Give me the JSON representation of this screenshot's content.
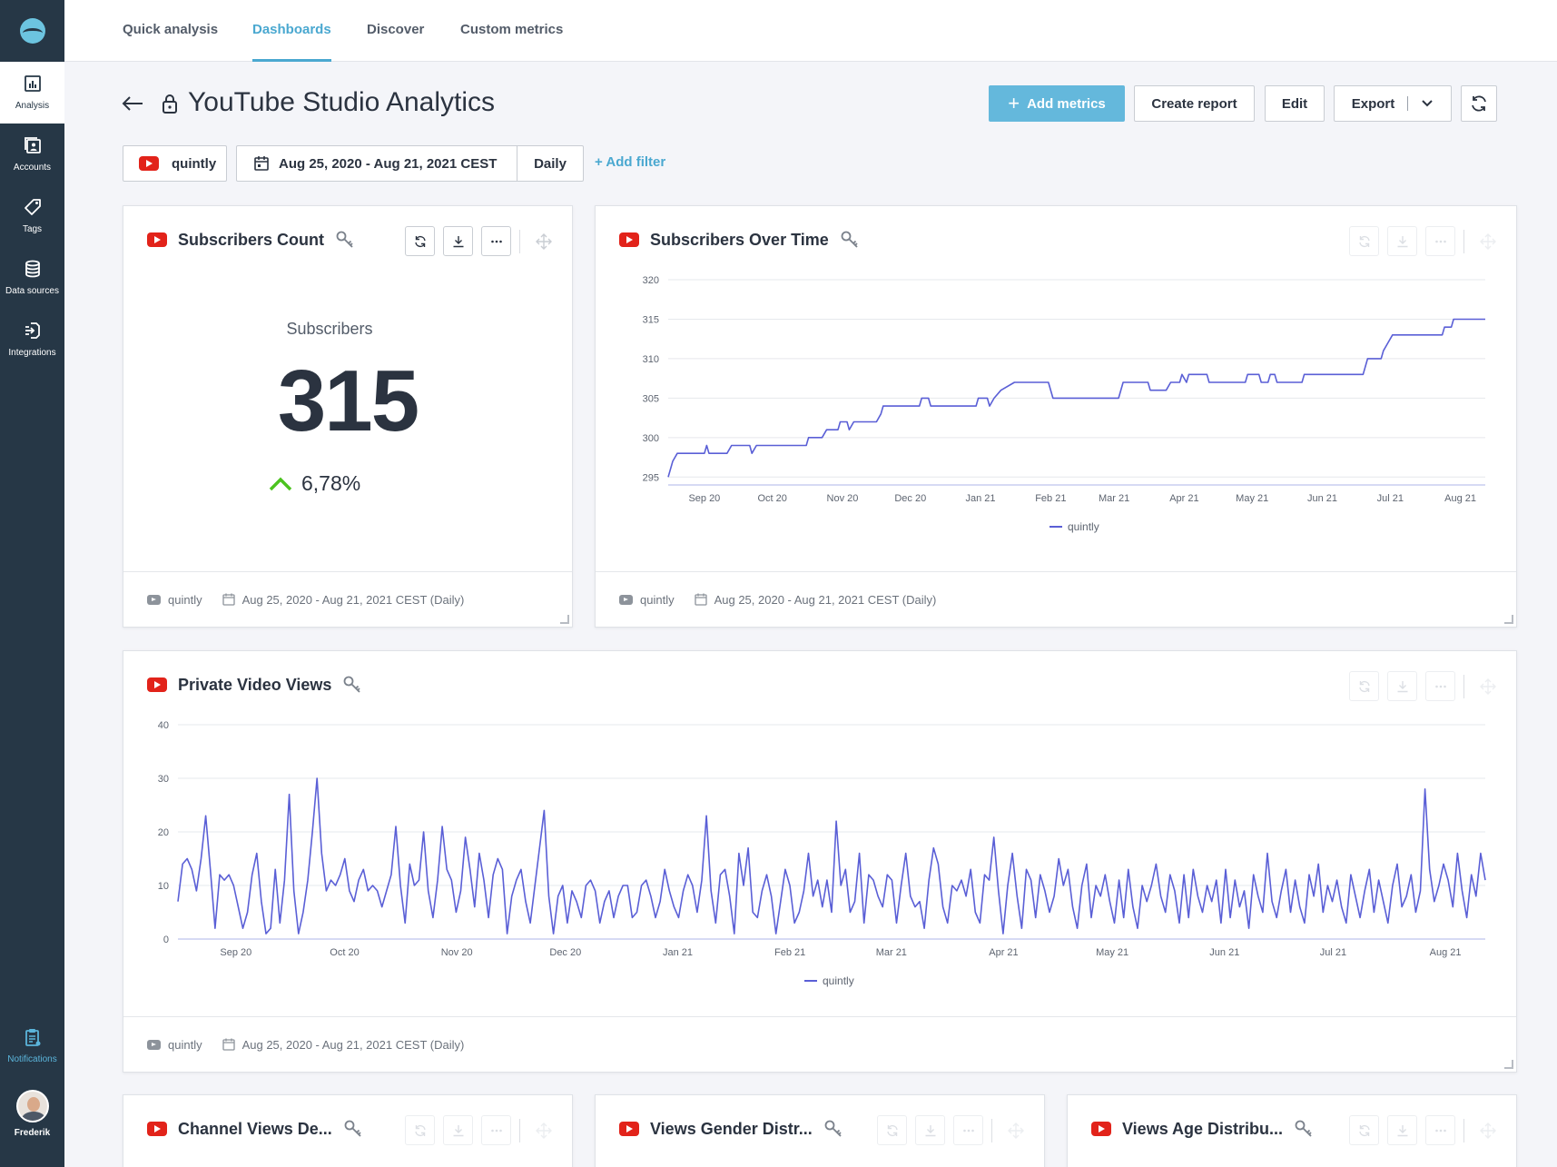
{
  "sidebar": {
    "items": [
      {
        "name": "analysis",
        "label": "Analysis",
        "icon": "bar-chart-icon"
      },
      {
        "name": "accounts",
        "label": "Accounts",
        "icon": "accounts-icon"
      },
      {
        "name": "tags",
        "label": "Tags",
        "icon": "tag-icon"
      },
      {
        "name": "data-sources",
        "label": "Data sources",
        "icon": "database-icon"
      },
      {
        "name": "integrations",
        "label": "Integrations",
        "icon": "integrations-icon"
      }
    ],
    "notifications": {
      "label": "Notifications",
      "icon": "clipboard-icon"
    },
    "user": {
      "name": "Frederik"
    }
  },
  "tabs": [
    {
      "label": "Quick analysis"
    },
    {
      "label": "Dashboards",
      "active": true
    },
    {
      "label": "Discover"
    },
    {
      "label": "Custom metrics"
    }
  ],
  "header": {
    "title": "YouTube Studio Analytics",
    "add_metrics": "Add metrics",
    "create_report": "Create report",
    "edit": "Edit",
    "export": "Export"
  },
  "filters": {
    "profile": "quintly",
    "date_range": "Aug 25, 2020 - Aug 21, 2021 CEST",
    "interval": "Daily",
    "add_filter": "+ Add filter"
  },
  "footer": {
    "profile": "quintly",
    "range": "Aug 25, 2020 - Aug 21, 2021 CEST (Daily)"
  },
  "cards": {
    "subscribers_count": {
      "title": "Subscribers Count",
      "label": "Subscribers",
      "value": "315",
      "change": "6,78%",
      "change_direction": "up"
    },
    "subscribers_over_time": {
      "title": "Subscribers Over Time"
    },
    "private_video_views": {
      "title": "Private Video Views"
    },
    "channel_views": {
      "title": "Channel Views De..."
    },
    "views_gender": {
      "title": "Views Gender Distr..."
    },
    "views_age": {
      "title": "Views Age Distribu..."
    }
  },
  "colors": {
    "sidebar": "#263746",
    "accent": "#4aa8d0",
    "primary_button": "#64b8dc",
    "series": "#5a5fd6",
    "positive": "#4cc31f",
    "youtube": "#e2231a"
  },
  "chart_data": [
    {
      "type": "line",
      "title": "Subscribers Over Time",
      "x_tick_labels": [
        "Sep 20",
        "Oct 20",
        "Nov 20",
        "Dec 20",
        "Jan 21",
        "Feb 21",
        "Mar 21",
        "Apr 21",
        "May 21",
        "Jun 21",
        "Jul 21",
        "Aug 21"
      ],
      "ylim": [
        294,
        320
      ],
      "y_ticks": [
        295,
        300,
        305,
        310,
        315,
        320
      ],
      "grid": true,
      "legend": "bottom-center",
      "series": [
        {
          "name": "quintly",
          "points": [
            [
              "2020-08-25",
              295
            ],
            [
              "2020-08-27",
              297
            ],
            [
              "2020-08-29",
              298
            ],
            [
              "2020-09-10",
              298
            ],
            [
              "2020-09-11",
              299
            ],
            [
              "2020-09-12",
              298
            ],
            [
              "2020-09-20",
              298
            ],
            [
              "2020-09-22",
              299
            ],
            [
              "2020-09-30",
              299
            ],
            [
              "2020-10-01",
              298
            ],
            [
              "2020-10-03",
              299
            ],
            [
              "2020-10-25",
              299
            ],
            [
              "2020-10-26",
              300
            ],
            [
              "2020-11-01",
              300
            ],
            [
              "2020-11-03",
              301
            ],
            [
              "2020-11-08",
              301
            ],
            [
              "2020-11-09",
              302
            ],
            [
              "2020-11-12",
              302
            ],
            [
              "2020-11-13",
              301
            ],
            [
              "2020-11-15",
              302
            ],
            [
              "2020-11-25",
              302
            ],
            [
              "2020-11-27",
              303
            ],
            [
              "2020-11-28",
              304
            ],
            [
              "2020-11-30",
              304
            ],
            [
              "2020-12-01",
              304
            ],
            [
              "2020-12-14",
              304
            ],
            [
              "2020-12-15",
              305
            ],
            [
              "2020-12-18",
              305
            ],
            [
              "2020-12-19",
              304
            ],
            [
              "2021-01-08",
              304
            ],
            [
              "2021-01-09",
              305
            ],
            [
              "2021-01-13",
              305
            ],
            [
              "2021-01-14",
              304
            ],
            [
              "2021-01-16",
              305
            ],
            [
              "2021-01-19",
              306
            ],
            [
              "2021-01-25",
              307
            ],
            [
              "2021-02-09",
              307
            ],
            [
              "2021-02-11",
              305
            ],
            [
              "2021-03-12",
              305
            ],
            [
              "2021-03-14",
              307
            ],
            [
              "2021-03-25",
              307
            ],
            [
              "2021-03-26",
              306
            ],
            [
              "2021-04-02",
              306
            ],
            [
              "2021-04-04",
              307
            ],
            [
              "2021-04-08",
              307
            ],
            [
              "2021-04-09",
              308
            ],
            [
              "2021-04-11",
              307
            ],
            [
              "2021-04-12",
              308
            ],
            [
              "2021-04-20",
              308
            ],
            [
              "2021-04-21",
              307
            ],
            [
              "2021-05-07",
              307
            ],
            [
              "2021-05-08",
              308
            ],
            [
              "2021-05-13",
              308
            ],
            [
              "2021-05-14",
              307
            ],
            [
              "2021-05-17",
              307
            ],
            [
              "2021-05-18",
              308
            ],
            [
              "2021-05-20",
              308
            ],
            [
              "2021-05-21",
              307
            ],
            [
              "2021-06-01",
              307
            ],
            [
              "2021-06-02",
              308
            ],
            [
              "2021-06-28",
              308
            ],
            [
              "2021-06-29",
              309
            ],
            [
              "2021-06-30",
              310
            ],
            [
              "2021-07-06",
              310
            ],
            [
              "2021-07-07",
              311
            ],
            [
              "2021-07-09",
              312
            ],
            [
              "2021-07-11",
              313
            ],
            [
              "2021-08-02",
              313
            ],
            [
              "2021-08-03",
              314
            ],
            [
              "2021-08-06",
              314
            ],
            [
              "2021-08-07",
              315
            ],
            [
              "2021-08-21",
              315
            ]
          ]
        }
      ]
    },
    {
      "type": "line",
      "title": "Private Video Views",
      "x_tick_labels": [
        "Sep 20",
        "Oct 20",
        "Nov 20",
        "Dec 20",
        "Jan 21",
        "Feb 21",
        "Mar 21",
        "Apr 21",
        "May 21",
        "Jun 21",
        "Jul 21",
        "Aug 21"
      ],
      "ylim": [
        0,
        40
      ],
      "y_ticks": [
        0,
        10,
        20,
        30,
        40
      ],
      "grid": true,
      "legend": "bottom-center",
      "series": [
        {
          "name": "quintly",
          "start_date": "2020-08-25",
          "values": [
            7,
            14,
            15,
            13,
            9,
            15,
            23,
            13,
            2,
            12,
            11,
            12,
            10,
            6,
            2,
            5,
            12,
            16,
            7,
            1,
            2,
            13,
            3,
            11,
            27,
            9,
            1,
            5,
            11,
            20,
            30,
            16,
            9,
            11,
            10,
            12,
            15,
            9,
            7,
            11,
            13,
            9,
            10,
            9,
            6,
            9,
            12,
            21,
            10,
            3,
            14,
            10,
            11,
            20,
            9,
            4,
            11,
            21,
            13,
            11,
            5,
            9,
            19,
            13,
            6,
            16,
            11,
            4,
            12,
            15,
            13,
            1,
            8,
            11,
            13,
            7,
            3,
            10,
            17,
            24,
            8,
            1,
            8,
            10,
            3,
            9,
            7,
            4,
            10,
            11,
            9,
            3,
            7,
            9,
            4,
            8,
            10,
            10,
            4,
            5,
            10,
            11,
            8,
            4,
            7,
            13,
            9,
            6,
            4,
            9,
            12,
            10,
            5,
            11,
            23,
            9,
            3,
            12,
            13,
            8,
            1,
            16,
            10,
            17,
            5,
            4,
            9,
            12,
            8,
            1,
            7,
            13,
            10,
            3,
            5,
            9,
            16,
            8,
            11,
            6,
            11,
            5,
            22,
            10,
            13,
            5,
            7,
            16,
            3,
            12,
            11,
            8,
            6,
            12,
            11,
            3,
            10,
            16,
            8,
            6,
            7,
            2,
            11,
            17,
            14,
            6,
            3,
            10,
            9,
            11,
            8,
            13,
            5,
            3,
            12,
            11,
            19,
            9,
            1,
            10,
            16,
            8,
            2,
            13,
            11,
            4,
            12,
            9,
            5,
            8,
            15,
            10,
            13,
            6,
            2,
            10,
            14,
            4,
            10,
            8,
            12,
            7,
            3,
            11,
            4,
            13,
            6,
            2,
            10,
            7,
            10,
            14,
            8,
            5,
            12,
            9,
            3,
            12,
            4,
            13,
            8,
            5,
            10,
            7,
            11,
            3,
            13,
            4,
            11,
            6,
            9,
            2,
            12,
            8,
            5,
            16,
            7,
            4,
            9,
            13,
            5,
            11,
            6,
            3,
            12,
            8,
            14,
            5,
            10,
            7,
            11,
            6,
            3,
            12,
            8,
            4,
            9,
            13,
            5,
            11,
            7,
            3,
            10,
            14,
            6,
            8,
            12,
            5,
            9,
            28,
            13,
            7,
            10,
            14,
            11,
            6,
            16,
            9,
            4,
            12,
            8,
            16,
            11
          ]
        }
      ]
    }
  ]
}
